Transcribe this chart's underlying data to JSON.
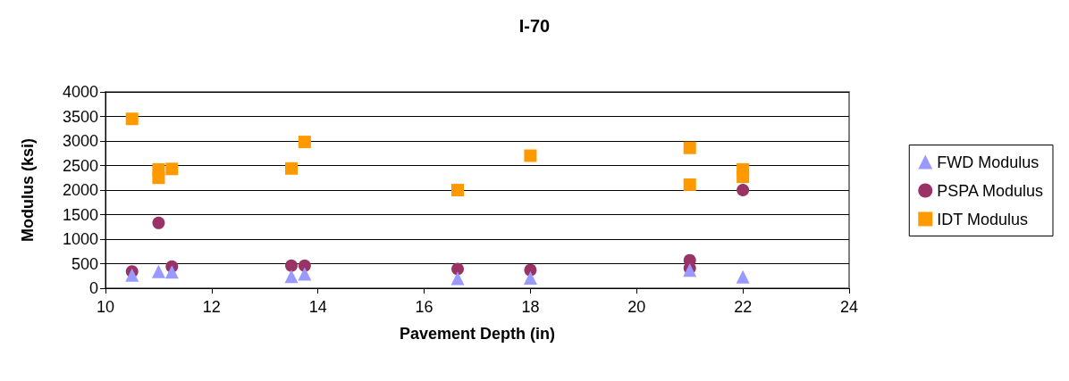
{
  "chart_data": {
    "type": "scatter",
    "title": "I-70",
    "xlabel": "Pavement Depth (in)",
    "ylabel": "Modulus (ksi)",
    "xlim": [
      10,
      24
    ],
    "xticks": [
      10,
      12,
      14,
      16,
      18,
      20,
      22,
      24
    ],
    "ylim": [
      0,
      4000
    ],
    "yticks": [
      0,
      500,
      1000,
      1500,
      2000,
      2500,
      3000,
      3500,
      4000
    ],
    "grid": "y",
    "legend": "right",
    "series": [
      {
        "name": "FWD Modulus",
        "color": "#9999ff",
        "marker": "triangle",
        "x": [
          10.5,
          11,
          11.25,
          13.5,
          13.75,
          16.63,
          18,
          21,
          22
        ],
        "values": [
          270,
          340,
          330,
          240,
          290,
          200,
          210,
          370,
          230
        ]
      },
      {
        "name": "PSPA Modulus",
        "color": "#993366",
        "marker": "circle",
        "x": [
          10.5,
          11,
          11.25,
          13.5,
          13.75,
          16.63,
          18,
          21,
          21,
          22
        ],
        "values": [
          340,
          1330,
          440,
          460,
          460,
          390,
          370,
          570,
          410,
          2000
        ]
      },
      {
        "name": "IDT Modulus",
        "color": "#ff9900",
        "marker": "square",
        "x": [
          10.5,
          11,
          11,
          11.25,
          13.5,
          13.75,
          16.63,
          18,
          21,
          21,
          22,
          22
        ],
        "values": [
          3450,
          2420,
          2250,
          2430,
          2440,
          2980,
          2000,
          2700,
          2860,
          2110,
          2420,
          2270
        ]
      }
    ]
  }
}
